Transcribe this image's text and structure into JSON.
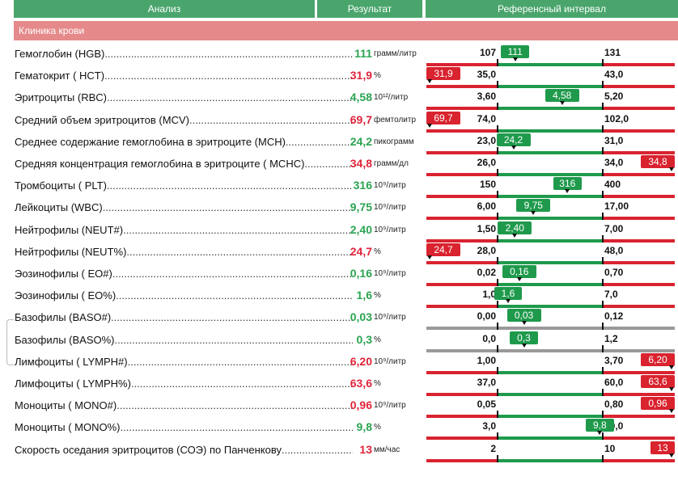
{
  "header": {
    "col1": "Анализ",
    "col2": "Результат",
    "col3": "Референсный интервал"
  },
  "section_title": "Клиника крови",
  "colors": {
    "header": "#4aa56c",
    "section": "#e5898a",
    "ok": "#2aa450",
    "bad": "#e0243a",
    "bar_normal": "#1f9a4c",
    "bar_out": "#d9232f",
    "bar_neutral": "#9a9a9a"
  },
  "rows": [
    {
      "name": "Гемоглобин (HGB)",
      "value": "111",
      "unit": "грамм/литр",
      "status": "ok",
      "low": "107",
      "high": "131",
      "bar": "normal"
    },
    {
      "name": "Гематокрит ( HCT)",
      "value": "31,9",
      "unit": "%",
      "status": "bad",
      "low": "35,0",
      "high": "43,0",
      "bar": "normal"
    },
    {
      "name": "Эритроциты (RBC)",
      "value": "4,58",
      "unit": "10¹²/литр",
      "status": "ok",
      "low": "3,60",
      "high": "5,20",
      "bar": "normal"
    },
    {
      "name": "Средний объем эритроцитов (MCV)",
      "value": "69,7",
      "unit": "фемтолитр",
      "status": "bad",
      "low": "74,0",
      "high": "102,0",
      "bar": "normal"
    },
    {
      "name": "Среднее содержание гемоглобина в эритроците (MCH)",
      "value": "24,2",
      "unit": "пикограмм",
      "status": "ok",
      "low": "23,0",
      "high": "31,0",
      "bar": "normal"
    },
    {
      "name": "Средняя концентрация гемоглобина в эритроците ( MCHC)",
      "value": "34,8",
      "unit": "грамм/дл",
      "status": "bad",
      "low": "26,0",
      "high": "34,0",
      "bar": "normal"
    },
    {
      "name": "Тромбоциты ( PLT)",
      "value": "316",
      "unit": "10⁹/литр",
      "status": "ok",
      "low": "150",
      "high": "400",
      "bar": "normal"
    },
    {
      "name": "Лейкоциты (WBC)",
      "value": "9,75",
      "unit": "10⁹/литр",
      "status": "ok",
      "low": "6,00",
      "high": "17,00",
      "bar": "normal"
    },
    {
      "name": "Нейтрофилы (NEUT#)",
      "value": "2,40",
      "unit": "10⁹/литр",
      "status": "ok",
      "low": "1,50",
      "high": "7,00",
      "bar": "normal"
    },
    {
      "name": "Нейтрофилы (NEUT%)",
      "value": "24,7",
      "unit": "%",
      "status": "bad",
      "low": "28,0",
      "high": "48,0",
      "bar": "normal"
    },
    {
      "name": "Эозинофилы ( EO#)",
      "value": "0,16",
      "unit": "10⁹/литр",
      "status": "ok",
      "low": "0,02",
      "high": "0,70",
      "bar": "normal"
    },
    {
      "name": "Эозинофилы ( EO%)",
      "value": "1,6",
      "unit": "%",
      "status": "ok",
      "low": "1,0",
      "high": "7,0",
      "bar": "normal"
    },
    {
      "name": "Базофилы (BASO#)",
      "value": "0,03",
      "unit": "10⁹/литр",
      "status": "ok",
      "low": "0,00",
      "high": "0,12",
      "bar": "neutral"
    },
    {
      "name": "Базофилы (BASO%)",
      "value": "0,3",
      "unit": "%",
      "status": "ok",
      "low": "0,0",
      "high": "1,2",
      "bar": "neutral"
    },
    {
      "name": "Лимфоциты ( LYMPH#)",
      "value": "6,20",
      "unit": "10⁹/литр",
      "status": "bad",
      "low": "1,00",
      "high": "3,70",
      "bar": "normal"
    },
    {
      "name": "Лимфоциты ( LYMPH%)",
      "value": "63,6",
      "unit": "%",
      "status": "bad",
      "low": "37,0",
      "high": "60,0",
      "bar": "normal"
    },
    {
      "name": "Моноциты ( MONO#)",
      "value": "0,96",
      "unit": "10⁹/литр",
      "status": "bad",
      "low": "0,05",
      "high": "0,80",
      "bar": "normal"
    },
    {
      "name": "Моноциты ( MONO%)",
      "value": "9,8",
      "unit": "%",
      "status": "ok",
      "low": "3,0",
      "high": "10,0",
      "bar": "normal"
    },
    {
      "name": "Скорость оседания эритроцитов (СОЭ) по Панченкову",
      "value": "13",
      "unit": "мм/час",
      "status": "bad",
      "low": "2",
      "high": "10",
      "bar": "normal"
    }
  ]
}
